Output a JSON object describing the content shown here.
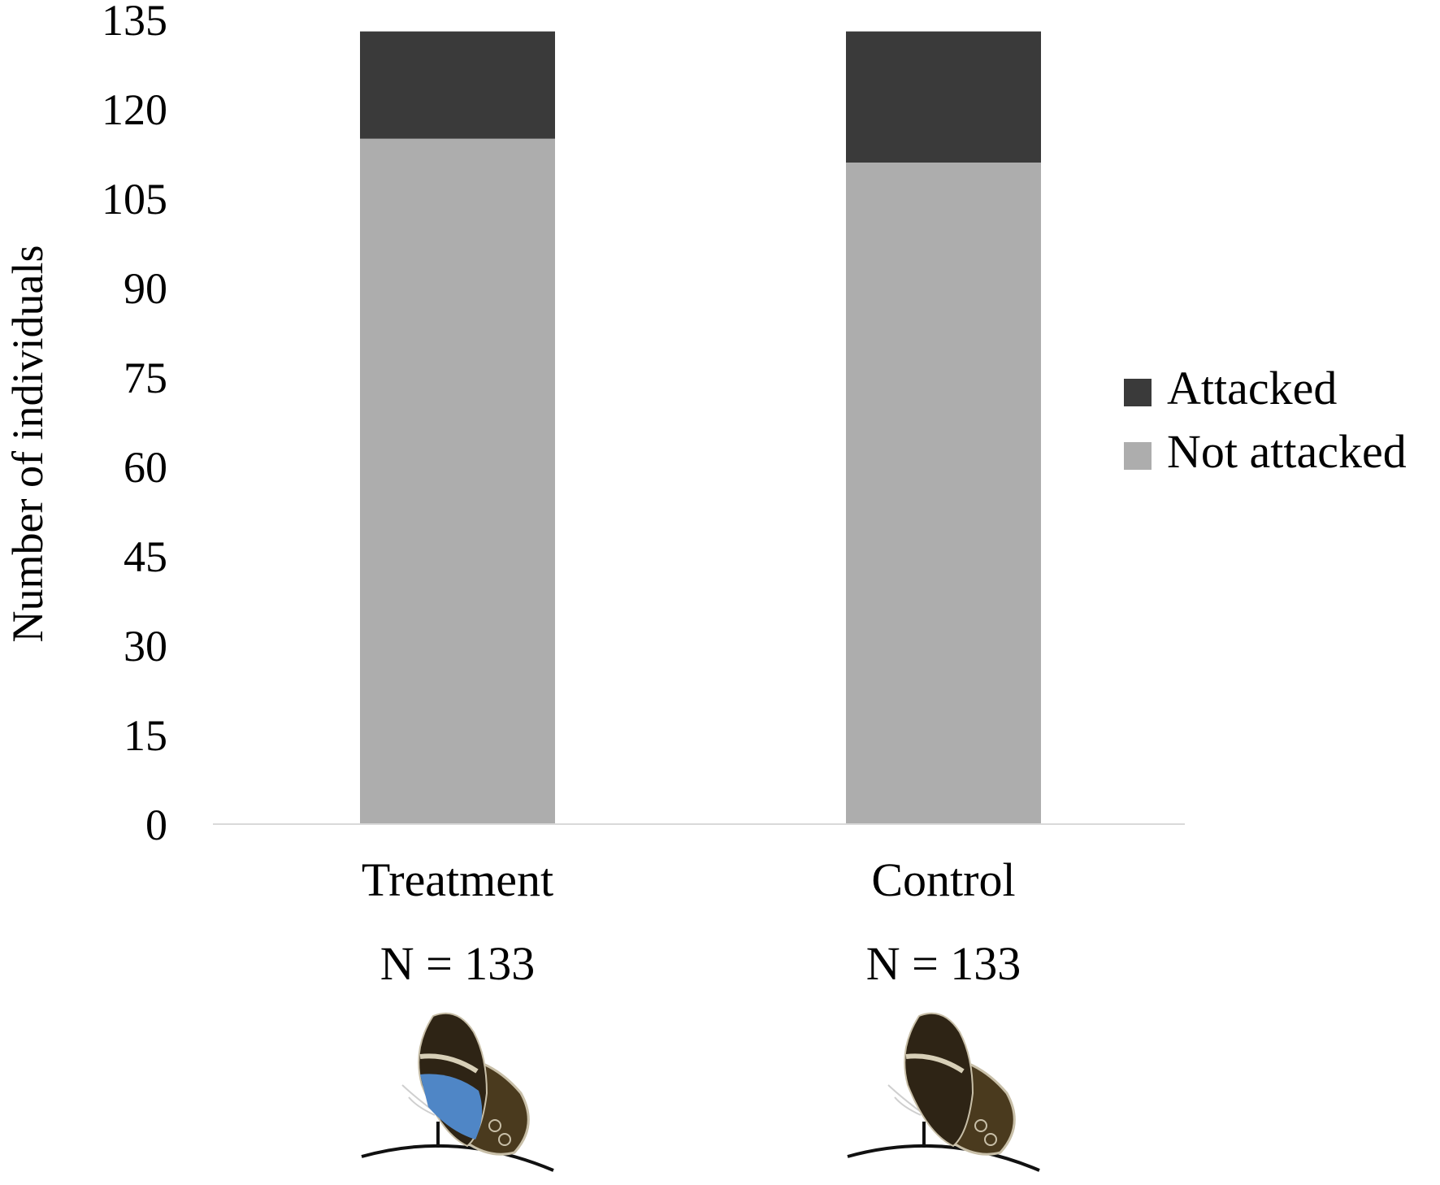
{
  "chart_data": {
    "type": "bar",
    "stacked": true,
    "ylabel": "Number of individuals",
    "ylim": [
      0,
      135
    ],
    "yticks": [
      0,
      15,
      30,
      45,
      60,
      75,
      90,
      105,
      120,
      135
    ],
    "grid": false,
    "legend_position": "right",
    "categories": [
      "Treatment",
      "Control"
    ],
    "sample_sizes": [
      "N = 133",
      "N = 133"
    ],
    "series": [
      {
        "name": "Not attacked",
        "color": "#adadad",
        "values": [
          115,
          111
        ]
      },
      {
        "name": "Attacked",
        "color": "#3a3a3a",
        "values": [
          18,
          22
        ]
      }
    ],
    "legend_order": [
      "Attacked",
      "Not attacked"
    ],
    "category_icons": [
      "butterfly-blue-patch-icon",
      "butterfly-plain-icon"
    ],
    "colors": {
      "wing_dark": "#2e2415",
      "wing_brown": "#4a3a1e",
      "blue_patch": "#4f86c6",
      "wing_band": "#d8d0b8",
      "perch": "#111111"
    }
  }
}
